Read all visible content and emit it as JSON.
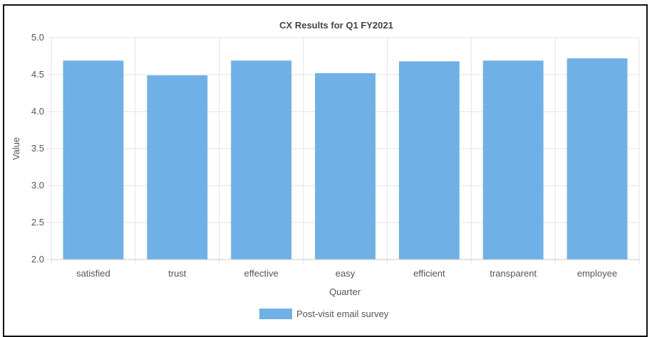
{
  "chart_data": {
    "type": "bar",
    "title": "CX Results for Q1 FY2021",
    "xlabel": "Quarter",
    "ylabel": "Value",
    "categories": [
      "satisfied",
      "trust",
      "effective",
      "easy",
      "efficient",
      "transparent",
      "employee"
    ],
    "series": [
      {
        "name": "Post-visit email survey",
        "values": [
          4.69,
          4.49,
          4.69,
          4.52,
          4.68,
          4.69,
          4.72
        ],
        "color": "#6fb0e6"
      }
    ],
    "ylim": [
      2.0,
      5.0
    ],
    "yticks": [
      "2.0",
      "2.5",
      "3.0",
      "3.5",
      "4.0",
      "4.5",
      "5.0"
    ],
    "grid": true,
    "legend_position": "bottom"
  }
}
